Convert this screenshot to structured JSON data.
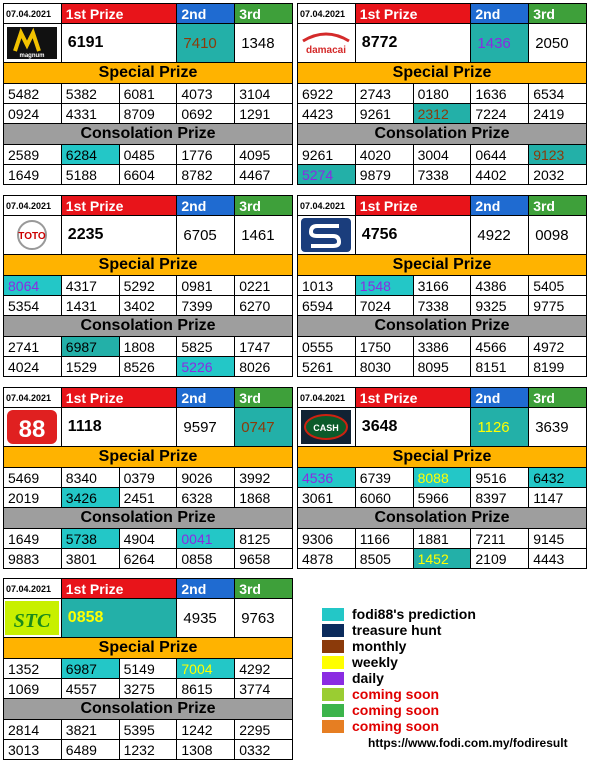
{
  "headers": {
    "first": "1st Prize",
    "second": "2nd",
    "third": "3rd",
    "special": "Special Prize",
    "consolation": "Consolation Prize"
  },
  "cards": [
    {
      "id": "magnum",
      "date": "07.04.2021",
      "logo_text": "magnum",
      "first": "6191",
      "second": "7410",
      "third": "1348",
      "special": [
        [
          "5482",
          "5382",
          "6081",
          "4073",
          "3104"
        ],
        [
          "0924",
          "4331",
          "8709",
          "0692",
          "1291"
        ]
      ],
      "consolation": [
        [
          "2589",
          "6284",
          "0485",
          "1776",
          "4095"
        ],
        [
          "1649",
          "5188",
          "6604",
          "8782",
          "4467"
        ]
      ]
    },
    {
      "id": "damacai",
      "date": "07.04.2021",
      "logo_text": "damacai",
      "first": "8772",
      "second": "1436",
      "third": "2050",
      "special": [
        [
          "6922",
          "2743",
          "0180",
          "1636",
          "6534"
        ],
        [
          "4423",
          "9261",
          "2312",
          "7224",
          "2419"
        ]
      ],
      "consolation": [
        [
          "9261",
          "4020",
          "3004",
          "0644",
          "9123"
        ],
        [
          "5274",
          "9879",
          "7338",
          "4402",
          "2032"
        ]
      ]
    },
    {
      "id": "toto",
      "date": "07.04.2021",
      "logo_text": "TOTO",
      "first": "2235",
      "second": "6705",
      "third": "1461",
      "special": [
        [
          "8064",
          "4317",
          "5292",
          "0981",
          "0221"
        ],
        [
          "5354",
          "1431",
          "3402",
          "7399",
          "6270"
        ]
      ],
      "consolation": [
        [
          "2741",
          "6987",
          "1808",
          "5825",
          "1747"
        ],
        [
          "4024",
          "1529",
          "8526",
          "5226",
          "8026"
        ]
      ]
    },
    {
      "id": "sabah",
      "date": "07.04.2021",
      "logo_text": "S",
      "first": "4756",
      "second": "4922",
      "third": "0098",
      "special": [
        [
          "1013",
          "1548",
          "3166",
          "4386",
          "5405"
        ],
        [
          "6594",
          "7024",
          "7338",
          "9325",
          "9775"
        ]
      ],
      "consolation": [
        [
          "0555",
          "1750",
          "3386",
          "4566",
          "4972"
        ],
        [
          "5261",
          "8030",
          "8095",
          "8151",
          "8199"
        ]
      ]
    },
    {
      "id": "sandakan",
      "date": "07.04.2021",
      "logo_text": "88",
      "first": "1118",
      "second": "9597",
      "third": "0747",
      "special": [
        [
          "5469",
          "8340",
          "0379",
          "9026",
          "3992"
        ],
        [
          "2019",
          "3426",
          "2451",
          "6328",
          "1868"
        ]
      ],
      "consolation": [
        [
          "1649",
          "5738",
          "4904",
          "0041",
          "8125"
        ],
        [
          "9883",
          "3801",
          "6264",
          "0858",
          "9658"
        ]
      ]
    },
    {
      "id": "cash",
      "date": "07.04.2021",
      "logo_text": "CASH",
      "first": "3648",
      "second": "1126",
      "third": "3639",
      "special": [
        [
          "4536",
          "6739",
          "8088",
          "9516",
          "6432"
        ],
        [
          "3061",
          "6060",
          "5966",
          "8397",
          "1147"
        ]
      ],
      "consolation": [
        [
          "9306",
          "1166",
          "1881",
          "7211",
          "9145"
        ],
        [
          "4878",
          "8505",
          "1452",
          "2109",
          "4443"
        ]
      ]
    },
    {
      "id": "stc",
      "date": "07.04.2021",
      "logo_text": "STC",
      "first": "0858",
      "second": "4935",
      "third": "9763",
      "special": [
        [
          "1352",
          "6987",
          "5149",
          "7004",
          "4292"
        ],
        [
          "1069",
          "4557",
          "3275",
          "8615",
          "3774"
        ]
      ],
      "consolation": [
        [
          "2814",
          "3821",
          "5395",
          "1242",
          "2295"
        ],
        [
          "3013",
          "6489",
          "1232",
          "1308",
          "0332"
        ]
      ]
    }
  ],
  "legend": [
    {
      "label": "fodi88's prediction",
      "color": "#23c7c7",
      "red": false
    },
    {
      "label": "treasure hunt",
      "color": "#0b2b5c",
      "red": false
    },
    {
      "label": "monthly",
      "color": "#8b3a0a",
      "red": false
    },
    {
      "label": "weekly",
      "color": "#ffff00",
      "red": false
    },
    {
      "label": "daily",
      "color": "#8a2be2",
      "red": false
    },
    {
      "label": "coming soon",
      "color": "#9acd32",
      "red": true
    },
    {
      "label": "coming soon",
      "color": "#3cb44b",
      "red": true
    },
    {
      "label": "coming soon",
      "color": "#e67e22",
      "red": true
    }
  ],
  "url": "https://www.fodi.com.my/fodiresult"
}
